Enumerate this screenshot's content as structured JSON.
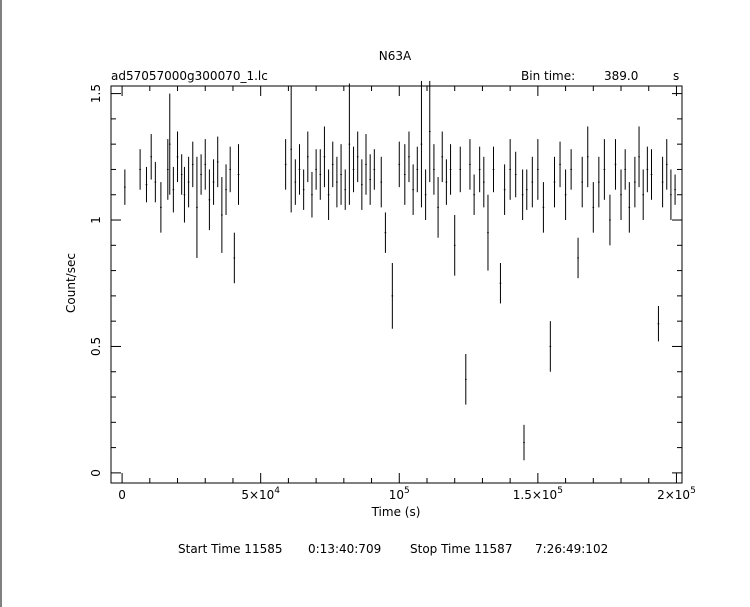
{
  "chart_data": {
    "type": "scatter",
    "title": "N63A",
    "file_label": "ad57057000g300070_1.lc",
    "bin_time_label": "Bin time:",
    "bin_time_value": "389.0",
    "bin_time_unit": "s",
    "xlabel": "Time (s)",
    "ylabel": "Count/sec",
    "xlim": [
      -4000,
      202000
    ],
    "ylim": [
      -0.04,
      1.53
    ],
    "x_ticks": [
      {
        "value": 0,
        "label": "0",
        "exp": ""
      },
      {
        "value": 50000,
        "label": "5×10",
        "exp": "4"
      },
      {
        "value": 100000,
        "label": "10",
        "exp": "5"
      },
      {
        "value": 150000,
        "label": "1.5×10",
        "exp": "5"
      },
      {
        "value": 200000,
        "label": "2×10",
        "exp": "5"
      }
    ],
    "y_ticks": [
      {
        "value": 0,
        "label": "0"
      },
      {
        "value": 0.5,
        "label": "0.5"
      },
      {
        "value": 1,
        "label": "1"
      },
      {
        "value": 1.5,
        "label": "1.5"
      }
    ],
    "grid": false,
    "series": [
      {
        "x": [
          1000,
          6500,
          8800,
          10500,
          12000,
          14000,
          16500,
          17200,
          18500,
          20000,
          21500,
          22500,
          24000,
          25500,
          27000,
          28500,
          30000,
          31500,
          33000,
          34500,
          36000,
          37500,
          39000,
          40500,
          42000,
          59000,
          61000,
          62500,
          64000,
          65500,
          67000,
          68500,
          70000,
          71500,
          73000,
          74500,
          76000,
          77500,
          79000,
          80500,
          82000,
          83500,
          85000,
          86500,
          88000,
          89500,
          91000,
          93500,
          95000,
          97500,
          100000,
          102000,
          103500,
          105000,
          106500,
          108000,
          109500,
          111000,
          112500,
          114000,
          115500,
          117000,
          118500,
          120000,
          122000,
          124000,
          125500,
          127000,
          129000,
          130500,
          132000,
          134000,
          136500,
          138000,
          140000,
          142000,
          144500,
          146000,
          148000,
          150000,
          152000,
          154500,
          156000,
          158000,
          160000,
          162000,
          164500,
          166000,
          168000,
          170000,
          172000,
          174000,
          176000,
          178000,
          180000,
          181500,
          183000,
          185000,
          186500,
          188000,
          189500,
          191000,
          193500,
          195000,
          196500,
          198000,
          199500
        ],
        "y": [
          1.13,
          1.2,
          1.14,
          1.25,
          1.15,
          1.05,
          1.2,
          1.3,
          1.12,
          1.25,
          1.18,
          1.1,
          1.15,
          1.22,
          1.05,
          1.18,
          1.22,
          1.08,
          1.15,
          1.23,
          1.02,
          1.12,
          1.2,
          0.85,
          1.18,
          1.22,
          1.28,
          1.15,
          1.2,
          1.12,
          1.25,
          1.1,
          1.2,
          1.18,
          1.25,
          1.1,
          1.22,
          1.15,
          1.18,
          1.12,
          1.3,
          1.2,
          1.25,
          1.14,
          1.22,
          1.16,
          1.2,
          1.15,
          0.95,
          0.7,
          1.22,
          1.18,
          1.25,
          1.12,
          1.2,
          1.3,
          1.1,
          1.35,
          1.2,
          1.05,
          1.25,
          1.15,
          1.2,
          0.9,
          1.2,
          0.37,
          1.22,
          1.1,
          1.2,
          1.15,
          0.95,
          1.2,
          0.75,
          1.12,
          1.2,
          1.18,
          1.1,
          1.12,
          1.15,
          1.2,
          1.05,
          0.5,
          1.15,
          1.22,
          1.1,
          1.2,
          0.85,
          1.15,
          1.25,
          1.05,
          1.15,
          1.2,
          1.0,
          1.22,
          1.1,
          1.2,
          1.05,
          1.15,
          1.25,
          1.1,
          1.2,
          1.18,
          0.59,
          1.15,
          1.22,
          1.1,
          1.12
        ],
        "err": [
          0.07,
          0.08,
          0.07,
          0.09,
          0.08,
          0.1,
          0.12,
          0.2,
          0.09,
          0.1,
          0.08,
          0.11,
          0.1,
          0.09,
          0.2,
          0.08,
          0.1,
          0.12,
          0.09,
          0.1,
          0.15,
          0.1,
          0.09,
          0.1,
          0.12,
          0.1,
          0.25,
          0.09,
          0.1,
          0.08,
          0.1,
          0.09,
          0.08,
          0.1,
          0.12,
          0.1,
          0.09,
          0.1,
          0.12,
          0.08,
          0.24,
          0.09,
          0.1,
          0.1,
          0.12,
          0.1,
          0.08,
          0.1,
          0.08,
          0.13,
          0.09,
          0.12,
          0.1,
          0.1,
          0.09,
          0.25,
          0.1,
          0.2,
          0.1,
          0.12,
          0.1,
          0.09,
          0.1,
          0.12,
          0.09,
          0.1,
          0.1,
          0.08,
          0.09,
          0.1,
          0.15,
          0.09,
          0.08,
          0.1,
          0.12,
          0.09,
          0.1,
          0.08,
          0.1,
          0.12,
          0.1,
          0.1,
          0.1,
          0.09,
          0.1,
          0.08,
          0.08,
          0.1,
          0.12,
          0.1,
          0.1,
          0.12,
          0.1,
          0.1,
          0.1,
          0.08,
          0.1,
          0.1,
          0.12,
          0.1,
          0.09,
          0.1,
          0.07,
          0.1,
          0.1,
          0.1,
          0.06
        ]
      },
      {
        "x": [
          145000
        ],
        "y": [
          0.12
        ],
        "err": [
          0.07
        ]
      }
    ]
  },
  "footer": {
    "start_label": "Start Time 11585",
    "start_time": "0:13:40:709",
    "stop_label": "Stop Time 11587",
    "stop_time": "7:26:49:102"
  }
}
